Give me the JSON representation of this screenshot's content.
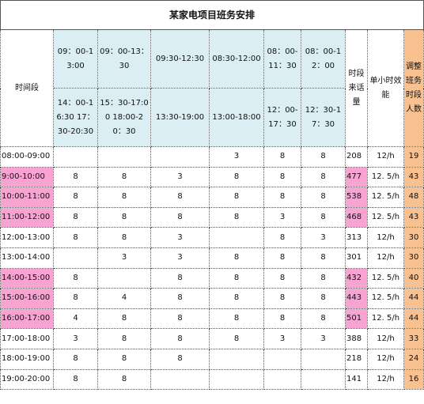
{
  "title": "某家电项目班务安排",
  "header": {
    "time": "时间段",
    "shifts": [
      [
        "09：00-13:00",
        "14：00-16:30 17：30-20:30"
      ],
      [
        "09：00-13：30",
        "15：30-17:00 18:00-20：30"
      ],
      [
        "09:30-12:30",
        "13:30-19:00"
      ],
      [
        "08:30-12:00",
        "13:00-18:00"
      ],
      [
        "08：00-11：30",
        "12：00-17：30"
      ],
      [
        "08：00-12：00",
        "12：30-17：30"
      ]
    ],
    "calls": "时段来话量",
    "efficiency": "单小时效能",
    "staff": "调整班务时段人数"
  },
  "rows": [
    {
      "time": "08:00-09:00",
      "shifts": [
        null,
        null,
        null,
        3,
        8,
        8
      ],
      "calls": 208,
      "efficiency": "12/h",
      "staff": 19,
      "peak": false
    },
    {
      "time": "9:00-10:00",
      "shifts": [
        8,
        8,
        3,
        8,
        8,
        8
      ],
      "calls": 477,
      "efficiency": "12. 5/h",
      "staff": 43,
      "peak": true
    },
    {
      "time": "10:00-11:00",
      "shifts": [
        8,
        8,
        8,
        8,
        8,
        8
      ],
      "calls": 538,
      "efficiency": "12. 5/h",
      "staff": 48,
      "peak": true
    },
    {
      "time": "11:00-12:00",
      "shifts": [
        8,
        8,
        8,
        8,
        3,
        8
      ],
      "calls": 468,
      "efficiency": "12. 5/h",
      "staff": 43,
      "peak": true
    },
    {
      "time": "12:00-13:00",
      "shifts": [
        8,
        8,
        3,
        null,
        8,
        3
      ],
      "calls": 313,
      "efficiency": "12/h",
      "staff": 30,
      "peak": false
    },
    {
      "time": "13:00-14:00",
      "shifts": [
        null,
        3,
        3,
        8,
        8,
        8
      ],
      "calls": 301,
      "efficiency": "12/h",
      "staff": 30,
      "peak": false
    },
    {
      "time": "14:00-15:00",
      "shifts": [
        8,
        null,
        8,
        8,
        8,
        8
      ],
      "calls": 432,
      "efficiency": "12. 5/h",
      "staff": 40,
      "peak": true
    },
    {
      "time": "15:00-16:00",
      "shifts": [
        8,
        4,
        8,
        8,
        8,
        8
      ],
      "calls": 443,
      "efficiency": "12. 5/h",
      "staff": 44,
      "peak": true
    },
    {
      "time": "16:00-17:00",
      "shifts": [
        4,
        8,
        8,
        8,
        8,
        8
      ],
      "calls": 501,
      "efficiency": "12. 5/h",
      "staff": 44,
      "peak": true
    },
    {
      "time": "17:00-18:00",
      "shifts": [
        3,
        8,
        8,
        8,
        3,
        3
      ],
      "calls": 388,
      "efficiency": "12/h",
      "staff": 33,
      "peak": false
    },
    {
      "time": "18:00-19:00",
      "shifts": [
        8,
        8,
        8,
        null,
        null,
        null
      ],
      "calls": 218,
      "efficiency": "12/h",
      "staff": 24,
      "peak": false
    },
    {
      "time": "19:00-20:00",
      "shifts": [
        8,
        8,
        null,
        null,
        null,
        null
      ],
      "calls": 141,
      "efficiency": "12/h",
      "staff": 16,
      "peak": false
    }
  ]
}
